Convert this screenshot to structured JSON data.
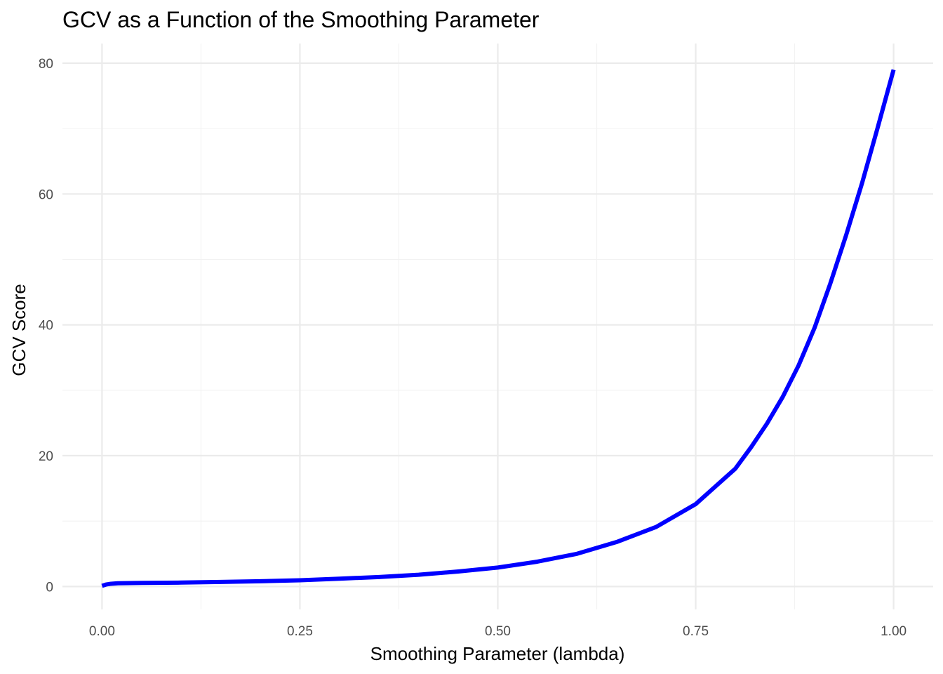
{
  "chart_data": {
    "type": "line",
    "title": "GCV as a Function of the Smoothing Parameter",
    "xlabel": "Smoothing Parameter (lambda)",
    "ylabel": "GCV Score",
    "xlim": [
      -0.05,
      1.05
    ],
    "ylim": [
      -3.5,
      83
    ],
    "x_ticks": [
      0,
      0.25,
      0.5,
      0.75,
      1
    ],
    "x_tick_labels": [
      "0.00",
      "0.25",
      "0.50",
      "0.75",
      "1.00"
    ],
    "y_ticks": [
      0,
      20,
      40,
      60,
      80
    ],
    "y_tick_labels": [
      "0",
      "20",
      "40",
      "60",
      "80"
    ],
    "grid": true,
    "legend": "none",
    "series": [
      {
        "color": "#0000ff",
        "x": [
          0,
          0.005,
          0.01,
          0.02,
          0.05,
          0.1,
          0.15,
          0.2,
          0.25,
          0.3,
          0.35,
          0.4,
          0.45,
          0.5,
          0.55,
          0.6,
          0.65,
          0.7,
          0.75,
          0.8,
          0.82,
          0.84,
          0.86,
          0.88,
          0.9,
          0.92,
          0.94,
          0.96,
          0.98,
          1.0
        ],
        "y": [
          0.1,
          0.3,
          0.4,
          0.5,
          0.55,
          0.6,
          0.7,
          0.8,
          0.95,
          1.2,
          1.45,
          1.8,
          2.3,
          2.9,
          3.8,
          5.0,
          6.8,
          9.1,
          12.6,
          18.0,
          21.3,
          24.9,
          29.0,
          33.8,
          39.5,
          46.3,
          53.7,
          61.6,
          70.2,
          79.0
        ]
      }
    ]
  }
}
